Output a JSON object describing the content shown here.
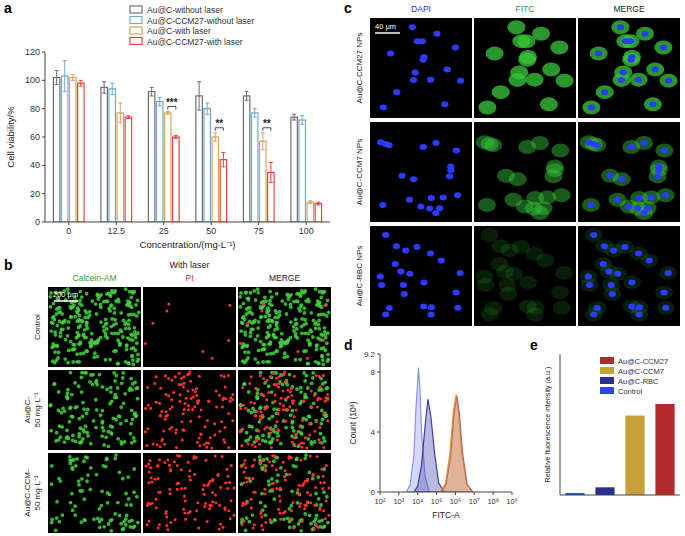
{
  "figure": {
    "panel_labels": [
      "a",
      "b",
      "c",
      "d",
      "e"
    ],
    "panel_b": {
      "condition": "With laser",
      "columns": [
        "Calcein-AM",
        "PI",
        "MERGE"
      ],
      "rows": [
        [
          "Control"
        ],
        [
          "Au@C-",
          "50 mg·L⁻¹"
        ],
        [
          "Au@C-CCM-",
          "50 mg·L⁻¹"
        ]
      ],
      "scale_bar": "200 μm"
    },
    "panel_c": {
      "columns": [
        "DAPI",
        "FITC",
        "MERGE"
      ],
      "rows": [
        "Au@C-CCM27 NPs",
        "Au@C-CCM7 NPs",
        "Au@C-RBC NPs"
      ],
      "scale_bar": "40 μm"
    }
  },
  "chart_data": [
    {
      "type": "bar",
      "x_label": "Concentration/(mg·L⁻¹)",
      "y_label": "Cell viability/%",
      "categories": [
        "0",
        "12.5",
        "25",
        "50",
        "75",
        "100"
      ],
      "series": [
        {
          "name": "Au@C-without laser",
          "color": "#6d6d6d",
          "values": [
            102,
            95,
            92,
            89,
            89,
            74
          ],
          "errors": [
            5,
            4,
            3,
            10,
            3,
            2
          ]
        },
        {
          "name": "Au@C-CCM27-without laser",
          "color": "#6fa8d6",
          "values": [
            103,
            94,
            85,
            80,
            77,
            72
          ],
          "errors": [
            11,
            4,
            3,
            4,
            3,
            3
          ]
        },
        {
          "name": "Au@C-with laser",
          "color": "#d9a55e",
          "values": [
            102,
            77,
            77,
            60,
            57,
            14
          ],
          "errors": [
            2,
            7,
            1,
            3,
            6,
            1
          ]
        },
        {
          "name": "Au@C-CCM27-with laser",
          "color": "#e8413a",
          "values": [
            98,
            74,
            60,
            44,
            35,
            13
          ],
          "errors": [
            2,
            1,
            1,
            5,
            7,
            1
          ]
        }
      ],
      "annotations": [
        {
          "text": "***",
          "category": "25",
          "between": [
            "Au@C-with laser",
            "Au@C-CCM27-with laser"
          ]
        },
        {
          "text": "**",
          "category": "50",
          "between": [
            "Au@C-with laser",
            "Au@C-CCM27-with laser"
          ]
        },
        {
          "text": "**",
          "category": "75",
          "between": [
            "Au@C-with laser",
            "Au@C-CCM27-with laser"
          ]
        }
      ],
      "ylim": [
        0,
        120
      ],
      "yticks": [
        0,
        20,
        40,
        60,
        80,
        100,
        120
      ],
      "grid": false,
      "legend": "top"
    },
    {
      "type": "area",
      "x_label": "FITC-A",
      "y_label": "Count (10³)",
      "log": "x",
      "xlim": [
        100,
        1000000000
      ],
      "xticks": [
        {
          "value": 100,
          "label": "10²"
        },
        {
          "value": 1000,
          "label": "10³"
        },
        {
          "value": 10000,
          "label": "10⁴"
        },
        {
          "value": 100000,
          "label": "10⁵"
        },
        {
          "value": 1000000,
          "label": "10⁶"
        },
        {
          "value": 10000000,
          "label": "10⁷"
        },
        {
          "value": 100000000,
          "label": "10⁸"
        },
        {
          "value": 1000000000,
          "label": "10⁹"
        }
      ],
      "ylim": [
        0,
        9.2
      ],
      "yticks": [
        0,
        4,
        8,
        9.2
      ],
      "series": [
        {
          "color": "#8a93e6",
          "x": [
            2500,
            4000,
            6300,
            8000,
            11000,
            13000,
            16000,
            25000,
            40000
          ],
          "values": [
            0,
            0.5,
            2.5,
            5.5,
            8.3,
            7,
            4,
            1,
            0
          ]
        },
        {
          "color": "#3a3aa8",
          "x": [
            6300,
            10000,
            16000,
            25000,
            35000,
            50000,
            80000,
            130000,
            250000
          ],
          "values": [
            0,
            0.4,
            1.8,
            4.5,
            6.2,
            5,
            2.5,
            0.6,
            0
          ]
        },
        {
          "color": "#d99a3a",
          "x": [
            160000,
            300000,
            500000,
            800000,
            1100000,
            1500000,
            2200000,
            4000000,
            8000000
          ],
          "values": [
            0,
            0.6,
            2.5,
            5.5,
            6.5,
            5.2,
            2.5,
            0.5,
            0
          ]
        },
        {
          "color": "#c06a5a",
          "x": [
            180000,
            320000,
            550000,
            850000,
            1200000,
            1600000,
            2400000,
            4200000,
            8500000
          ],
          "values": [
            0,
            0.5,
            2.3,
            5.3,
            6.4,
            5.3,
            2.6,
            0.5,
            0
          ]
        }
      ]
    },
    {
      "type": "bar",
      "y_label": "Relative fluorescence intensity (a.u.)",
      "categories": [
        "Control",
        "Au@C-RBC",
        "Au@C-CCM7",
        "Au@C-CCM27"
      ],
      "values": [
        0.15,
        0.6,
        6.2,
        7.1
      ],
      "colors": [
        "#2b45e8",
        "#2b2f8f",
        "#c8a038",
        "#b32a2e"
      ],
      "ylim": [
        0,
        11
      ],
      "tick_labels": false,
      "legend": "top right"
    }
  ]
}
